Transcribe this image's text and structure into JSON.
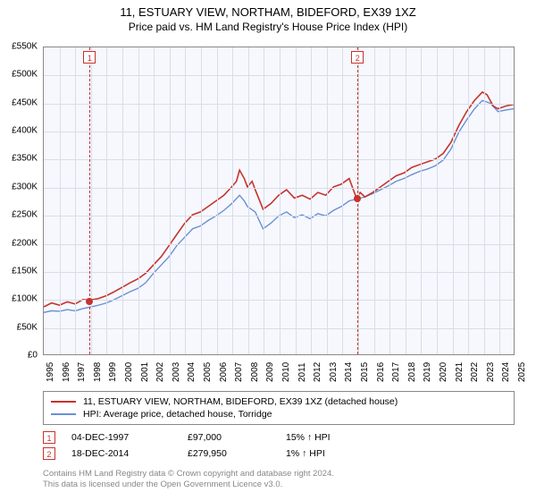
{
  "title_line1": "11, ESTUARY VIEW, NORTHAM, BIDEFORD, EX39 1XZ",
  "title_line2": "Price paid vs. HM Land Registry's House Price Index (HPI)",
  "chart": {
    "type": "line",
    "background_color": "#f6f8fd",
    "grid_color": "#d8dde8",
    "border_color": "#888888",
    "x_start_year": 1995,
    "x_end_year": 2025,
    "x_ticks": [
      1995,
      1996,
      1997,
      1998,
      1999,
      2000,
      2001,
      2002,
      2003,
      2004,
      2005,
      2006,
      2007,
      2008,
      2009,
      2010,
      2011,
      2012,
      2013,
      2014,
      2015,
      2016,
      2017,
      2018,
      2019,
      2020,
      2021,
      2022,
      2023,
      2024,
      2025
    ],
    "y_min": 0,
    "y_max": 550,
    "y_tick_step": 50,
    "y_tick_labels": [
      "£0",
      "£50K",
      "£100K",
      "£150K",
      "£200K",
      "£250K",
      "£300K",
      "£350K",
      "£400K",
      "£450K",
      "£500K",
      "£550K"
    ],
    "series": [
      {
        "name": "11, ESTUARY VIEW, NORTHAM, BIDEFORD, EX39 1XZ (detached house)",
        "color": "#c7332e",
        "line_width": 1.6,
        "data": [
          [
            1995.0,
            85
          ],
          [
            1995.5,
            92
          ],
          [
            1996.0,
            88
          ],
          [
            1996.5,
            94
          ],
          [
            1997.0,
            90
          ],
          [
            1997.5,
            98
          ],
          [
            1997.92,
            97
          ],
          [
            1998.5,
            100
          ],
          [
            1999.0,
            105
          ],
          [
            1999.5,
            112
          ],
          [
            2000.0,
            120
          ],
          [
            2000.5,
            128
          ],
          [
            2001.0,
            135
          ],
          [
            2001.5,
            145
          ],
          [
            2002.0,
            160
          ],
          [
            2002.5,
            175
          ],
          [
            2003.0,
            195
          ],
          [
            2003.5,
            215
          ],
          [
            2004.0,
            235
          ],
          [
            2004.5,
            250
          ],
          [
            2005.0,
            255
          ],
          [
            2005.5,
            265
          ],
          [
            2006.0,
            275
          ],
          [
            2006.5,
            285
          ],
          [
            2007.0,
            300
          ],
          [
            2007.3,
            310
          ],
          [
            2007.5,
            330
          ],
          [
            2007.8,
            315
          ],
          [
            2008.0,
            300
          ],
          [
            2008.3,
            310
          ],
          [
            2008.5,
            295
          ],
          [
            2009.0,
            260
          ],
          [
            2009.5,
            270
          ],
          [
            2010.0,
            285
          ],
          [
            2010.5,
            295
          ],
          [
            2011.0,
            280
          ],
          [
            2011.5,
            285
          ],
          [
            2012.0,
            278
          ],
          [
            2012.5,
            290
          ],
          [
            2013.0,
            285
          ],
          [
            2013.5,
            300
          ],
          [
            2014.0,
            305
          ],
          [
            2014.5,
            315
          ],
          [
            2014.96,
            280
          ],
          [
            2015.2,
            290
          ],
          [
            2015.5,
            282
          ],
          [
            2016.0,
            290
          ],
          [
            2016.5,
            300
          ],
          [
            2017.0,
            310
          ],
          [
            2017.5,
            320
          ],
          [
            2018.0,
            325
          ],
          [
            2018.5,
            335
          ],
          [
            2019.0,
            340
          ],
          [
            2019.5,
            345
          ],
          [
            2020.0,
            350
          ],
          [
            2020.5,
            360
          ],
          [
            2021.0,
            380
          ],
          [
            2021.5,
            410
          ],
          [
            2022.0,
            435
          ],
          [
            2022.5,
            455
          ],
          [
            2023.0,
            470
          ],
          [
            2023.3,
            465
          ],
          [
            2023.7,
            445
          ],
          [
            2024.0,
            440
          ],
          [
            2024.5,
            445
          ],
          [
            2025.0,
            448
          ]
        ]
      },
      {
        "name": "HPI: Average price, detached house, Torridge",
        "color": "#6a8fd4",
        "line_width": 1.4,
        "data": [
          [
            1995.0,
            75
          ],
          [
            1995.5,
            78
          ],
          [
            1996.0,
            77
          ],
          [
            1996.5,
            80
          ],
          [
            1997.0,
            78
          ],
          [
            1997.5,
            82
          ],
          [
            1998.0,
            85
          ],
          [
            1998.5,
            88
          ],
          [
            1999.0,
            92
          ],
          [
            1999.5,
            98
          ],
          [
            2000.0,
            105
          ],
          [
            2000.5,
            112
          ],
          [
            2001.0,
            118
          ],
          [
            2001.5,
            128
          ],
          [
            2002.0,
            145
          ],
          [
            2002.5,
            160
          ],
          [
            2003.0,
            175
          ],
          [
            2003.5,
            195
          ],
          [
            2004.0,
            210
          ],
          [
            2004.5,
            225
          ],
          [
            2005.0,
            230
          ],
          [
            2005.5,
            240
          ],
          [
            2006.0,
            248
          ],
          [
            2006.5,
            258
          ],
          [
            2007.0,
            270
          ],
          [
            2007.5,
            285
          ],
          [
            2007.8,
            275
          ],
          [
            2008.0,
            265
          ],
          [
            2008.5,
            255
          ],
          [
            2009.0,
            225
          ],
          [
            2009.5,
            235
          ],
          [
            2010.0,
            248
          ],
          [
            2010.5,
            255
          ],
          [
            2011.0,
            245
          ],
          [
            2011.5,
            250
          ],
          [
            2012.0,
            243
          ],
          [
            2012.5,
            252
          ],
          [
            2013.0,
            248
          ],
          [
            2013.5,
            258
          ],
          [
            2014.0,
            265
          ],
          [
            2014.5,
            275
          ],
          [
            2014.96,
            278
          ],
          [
            2015.5,
            282
          ],
          [
            2016.0,
            288
          ],
          [
            2016.5,
            295
          ],
          [
            2017.0,
            302
          ],
          [
            2017.5,
            310
          ],
          [
            2018.0,
            315
          ],
          [
            2018.5,
            322
          ],
          [
            2019.0,
            328
          ],
          [
            2019.5,
            332
          ],
          [
            2020.0,
            338
          ],
          [
            2020.5,
            348
          ],
          [
            2021.0,
            368
          ],
          [
            2021.5,
            398
          ],
          [
            2022.0,
            420
          ],
          [
            2022.5,
            440
          ],
          [
            2023.0,
            455
          ],
          [
            2023.5,
            450
          ],
          [
            2024.0,
            435
          ],
          [
            2024.5,
            438
          ],
          [
            2025.0,
            440
          ]
        ]
      }
    ],
    "markers": [
      {
        "label": "1",
        "year": 1997.92,
        "price": 97
      },
      {
        "label": "2",
        "year": 2014.96,
        "price": 280
      }
    ]
  },
  "legend": {
    "items": [
      {
        "color": "#c7332e",
        "label": "11, ESTUARY VIEW, NORTHAM, BIDEFORD, EX39 1XZ (detached house)"
      },
      {
        "color": "#6a8fd4",
        "label": "HPI: Average price, detached house, Torridge"
      }
    ]
  },
  "sales": [
    {
      "marker": "1",
      "date": "04-DEC-1997",
      "price": "£97,000",
      "rel": "15% ↑ HPI"
    },
    {
      "marker": "2",
      "date": "18-DEC-2014",
      "price": "£279,950",
      "rel": "1% ↑ HPI"
    }
  ],
  "footer": {
    "line1": "Contains HM Land Registry data © Crown copyright and database right 2024.",
    "line2": "This data is licensed under the Open Government Licence v3.0."
  },
  "colors": {
    "marker_border": "#c7332e",
    "footer_text": "#888888"
  },
  "sales_col_widths": {
    "date": 130,
    "price": 110,
    "rel": 120
  }
}
